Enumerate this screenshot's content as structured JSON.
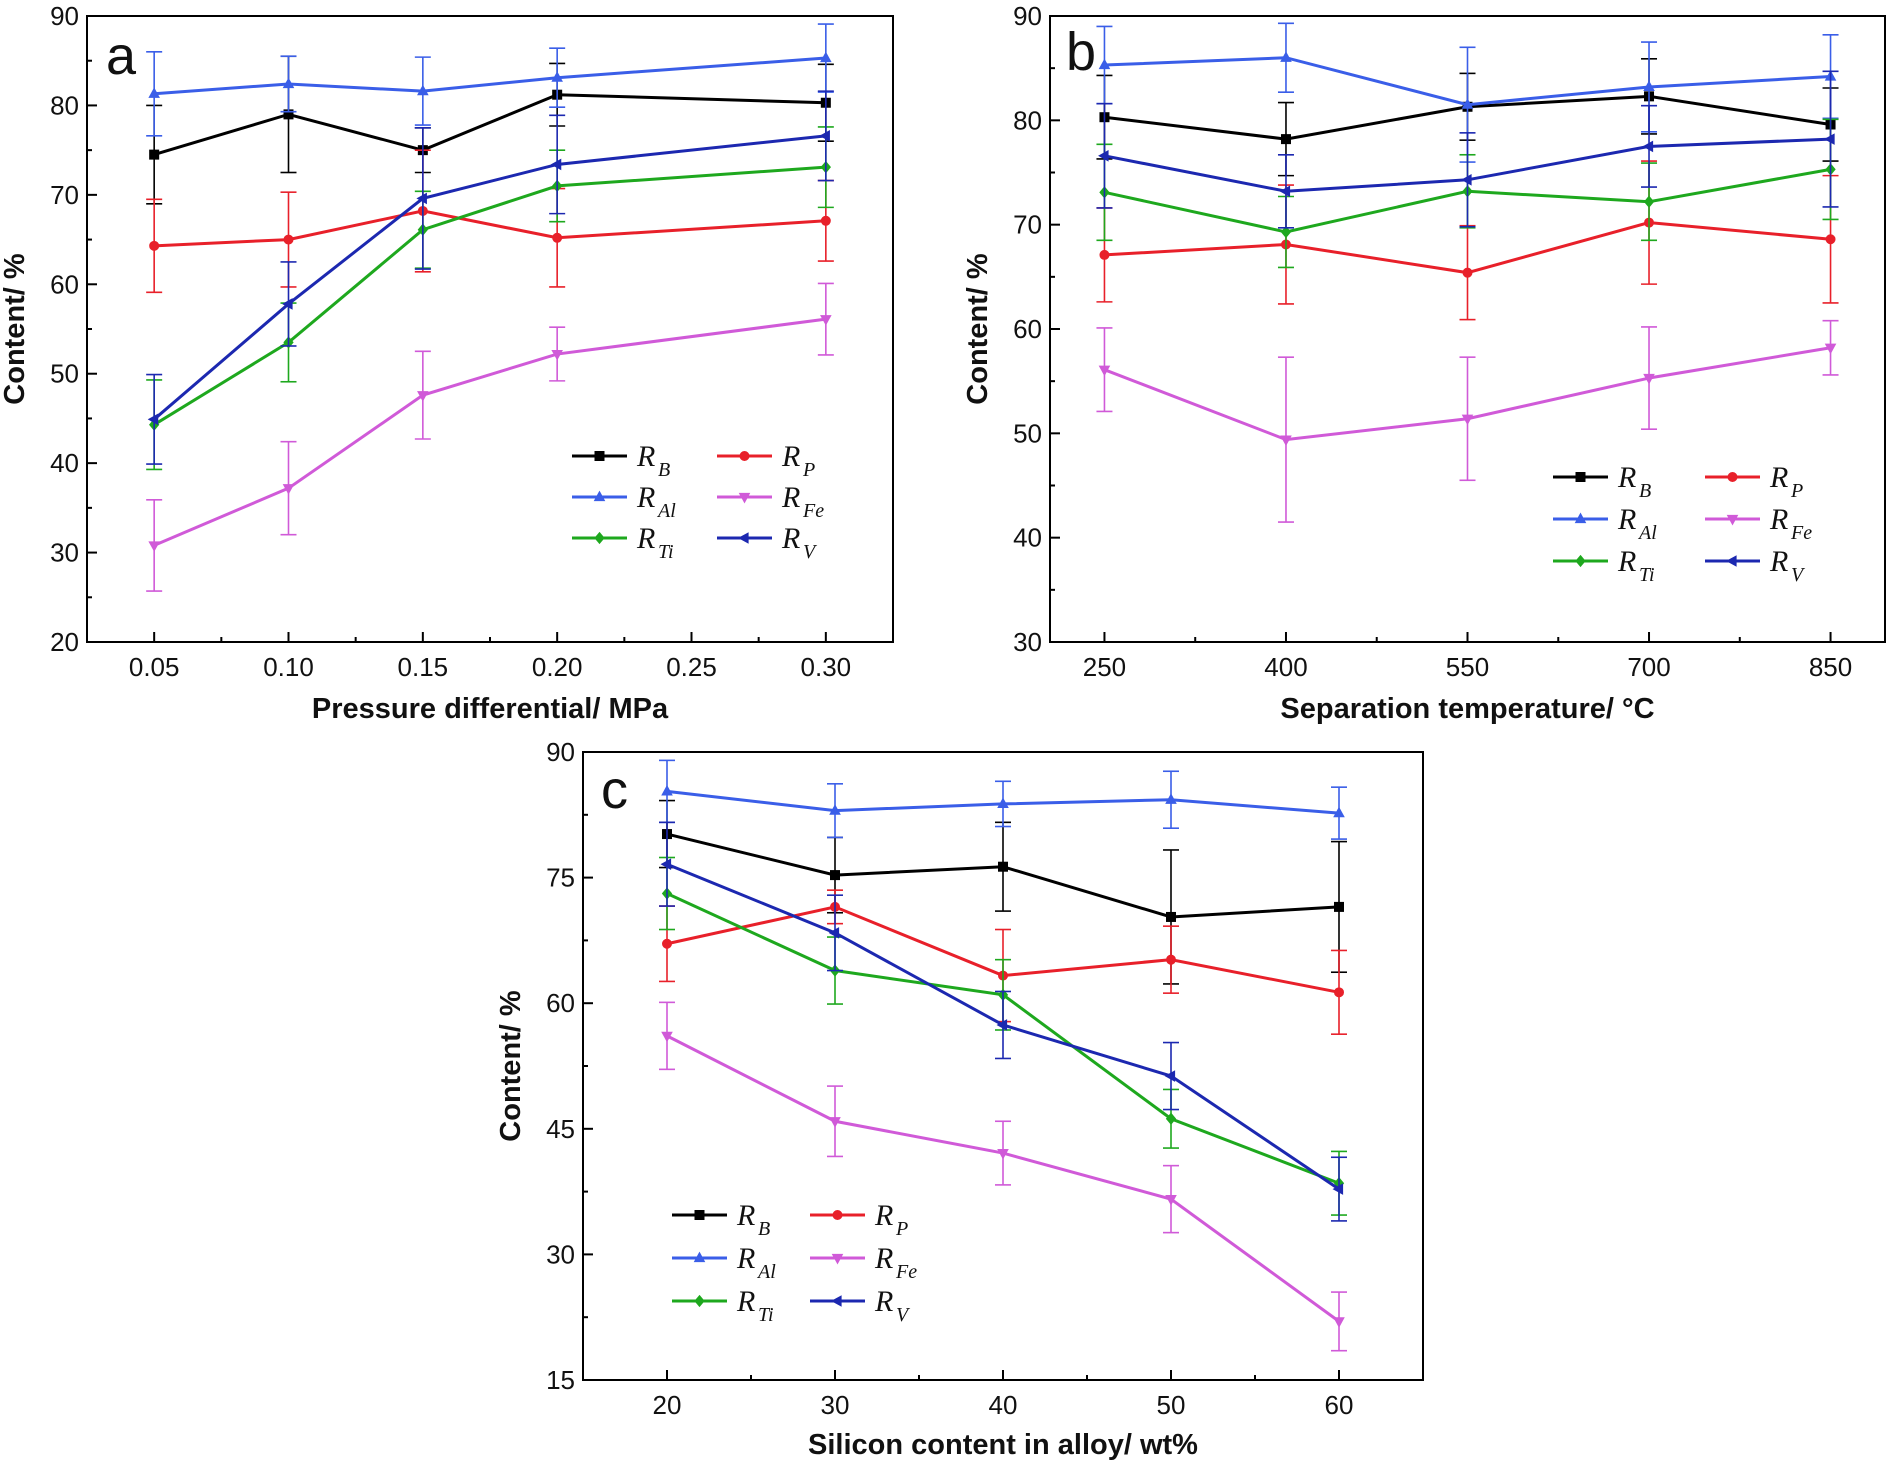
{
  "chart_data": [
    {
      "type": "line",
      "panel": "a",
      "xlabel": "Pressure differential/ MPa",
      "ylabel": "Content/ %",
      "x": [
        0.05,
        0.1,
        0.15,
        0.2,
        0.3
      ],
      "xticks": [
        "0.05",
        "0.10",
        "0.15",
        "0.20",
        "0.25",
        "0.30"
      ],
      "xtick_values": [
        0.05,
        0.1,
        0.15,
        0.2,
        0.25,
        0.3
      ],
      "yticks": [
        20,
        30,
        40,
        50,
        60,
        70,
        80,
        90
      ],
      "xlim": [
        0.025,
        0.325
      ],
      "ylim": [
        20,
        90
      ],
      "grid": false,
      "legend_position": "bottom-right",
      "series": [
        {
          "name": "R",
          "sub": "B",
          "color": "#000000",
          "marker": "square",
          "values": [
            74.5,
            79.0,
            75.0,
            81.2,
            80.3
          ],
          "err": [
            5.5,
            6.5,
            2.5,
            3.5,
            4.3
          ]
        },
        {
          "name": "R",
          "sub": "P",
          "color": "#e8202a",
          "marker": "circle",
          "values": [
            64.3,
            65.0,
            68.2,
            65.2,
            67.1
          ],
          "err": [
            5.2,
            5.3,
            6.8,
            5.5,
            4.5
          ]
        },
        {
          "name": "R",
          "sub": "Al",
          "color": "#3a5ee8",
          "marker": "triangle",
          "values": [
            81.3,
            82.4,
            81.6,
            83.1,
            85.3
          ],
          "err": [
            4.7,
            3.1,
            3.8,
            3.3,
            3.8
          ]
        },
        {
          "name": "R",
          "sub": "Fe",
          "color": "#d05ad8",
          "marker": "tri-down",
          "values": [
            30.8,
            37.2,
            47.6,
            52.2,
            56.1
          ],
          "err": [
            5.1,
            5.2,
            4.9,
            3.0,
            4.0
          ]
        },
        {
          "name": "R",
          "sub": "Ti",
          "color": "#1ea81e",
          "marker": "diamond",
          "values": [
            44.3,
            53.5,
            66.1,
            71.0,
            73.1
          ],
          "err": [
            5.0,
            4.4,
            4.3,
            4.0,
            4.5
          ]
        },
        {
          "name": "R",
          "sub": "V",
          "color": "#1c28b0",
          "marker": "tri-left",
          "values": [
            44.9,
            57.8,
            69.6,
            73.4,
            76.6
          ],
          "err": [
            5.0,
            4.7,
            7.9,
            5.5,
            5.0
          ]
        }
      ]
    },
    {
      "type": "line",
      "panel": "b",
      "xlabel": "Separation temperature/ °C",
      "ylabel": "Content/ %",
      "x": [
        250,
        400,
        550,
        700,
        850
      ],
      "xticks": [
        "250",
        "400",
        "550",
        "700",
        "850"
      ],
      "xtick_values": [
        250,
        400,
        550,
        700,
        850
      ],
      "yticks": [
        30,
        40,
        50,
        60,
        70,
        80,
        90
      ],
      "xlim": [
        205,
        895
      ],
      "ylim": [
        30,
        90
      ],
      "grid": false,
      "legend_position": "bottom-right",
      "series": [
        {
          "name": "R",
          "sub": "B",
          "color": "#000000",
          "marker": "square",
          "values": [
            80.3,
            78.2,
            81.3,
            82.3,
            79.6
          ],
          "err": [
            4.0,
            3.5,
            3.2,
            3.6,
            3.5
          ]
        },
        {
          "name": "R",
          "sub": "P",
          "color": "#e8202a",
          "marker": "circle",
          "values": [
            67.1,
            68.1,
            65.4,
            70.2,
            68.6
          ],
          "err": [
            4.5,
            5.7,
            4.5,
            5.9,
            6.1
          ]
        },
        {
          "name": "R",
          "sub": "Al",
          "color": "#3a5ee8",
          "marker": "triangle",
          "values": [
            85.3,
            86.0,
            81.5,
            83.2,
            84.2
          ],
          "err": [
            3.7,
            3.3,
            5.5,
            4.3,
            4.0
          ]
        },
        {
          "name": "R",
          "sub": "Fe",
          "color": "#d05ad8",
          "marker": "tri-down",
          "values": [
            56.1,
            49.4,
            51.4,
            55.3,
            58.2
          ],
          "err": [
            4.0,
            7.9,
            5.9,
            4.9,
            2.6
          ]
        },
        {
          "name": "R",
          "sub": "Ti",
          "color": "#1ea81e",
          "marker": "diamond",
          "values": [
            73.1,
            69.3,
            73.2,
            72.2,
            75.3
          ],
          "err": [
            4.6,
            3.4,
            3.5,
            3.7,
            4.8
          ]
        },
        {
          "name": "R",
          "sub": "V",
          "color": "#1c28b0",
          "marker": "tri-left",
          "values": [
            76.6,
            73.2,
            74.3,
            77.5,
            78.2
          ],
          "err": [
            5.0,
            3.5,
            4.5,
            3.9,
            6.5
          ]
        }
      ]
    },
    {
      "type": "line",
      "panel": "c",
      "xlabel": "Silicon content in alloy/ wt%",
      "ylabel": "Content/ %",
      "x": [
        20,
        30,
        40,
        50,
        60
      ],
      "xticks": [
        "20",
        "30",
        "40",
        "50",
        "60"
      ],
      "xtick_values": [
        20,
        30,
        40,
        50,
        60
      ],
      "yticks": [
        15,
        30,
        45,
        60,
        75,
        90
      ],
      "xlim": [
        15,
        65
      ],
      "ylim": [
        15,
        90
      ],
      "grid": false,
      "legend_position": "bottom-left",
      "series": [
        {
          "name": "R",
          "sub": "B",
          "color": "#000000",
          "marker": "square",
          "values": [
            80.2,
            75.3,
            76.3,
            70.3,
            71.5
          ],
          "err": [
            4.0,
            4.5,
            5.3,
            8.0,
            7.8
          ]
        },
        {
          "name": "R",
          "sub": "P",
          "color": "#e8202a",
          "marker": "circle",
          "values": [
            67.1,
            71.5,
            63.3,
            65.2,
            61.3
          ],
          "err": [
            4.5,
            2.0,
            5.5,
            4.0,
            5.0
          ]
        },
        {
          "name": "R",
          "sub": "Al",
          "color": "#3a5ee8",
          "marker": "triangle",
          "values": [
            85.3,
            83.0,
            83.8,
            84.3,
            82.7
          ],
          "err": [
            3.7,
            3.2,
            2.7,
            3.4,
            3.1
          ]
        },
        {
          "name": "R",
          "sub": "Fe",
          "color": "#d05ad8",
          "marker": "tri-down",
          "values": [
            56.1,
            45.9,
            42.1,
            36.6,
            22.0
          ],
          "err": [
            4.0,
            4.2,
            3.8,
            4.0,
            3.5
          ]
        },
        {
          "name": "R",
          "sub": "Ti",
          "color": "#1ea81e",
          "marker": "diamond",
          "values": [
            73.1,
            63.9,
            61.0,
            46.2,
            38.5
          ],
          "err": [
            4.3,
            4.0,
            4.2,
            3.5,
            3.8
          ]
        },
        {
          "name": "R",
          "sub": "V",
          "color": "#1c28b0",
          "marker": "tri-left",
          "values": [
            76.6,
            68.4,
            57.4,
            51.3,
            37.8
          ],
          "err": [
            5.0,
            4.5,
            4.0,
            4.0,
            3.8
          ]
        }
      ]
    }
  ]
}
